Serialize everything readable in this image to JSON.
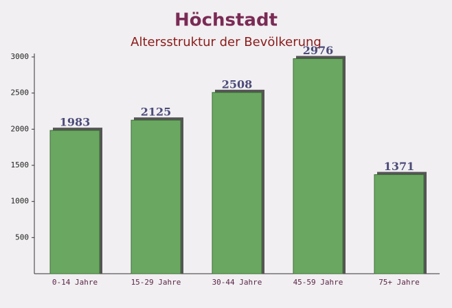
{
  "chart_data": {
    "type": "bar",
    "title": "Höchstadt",
    "subtitle": "Altersstruktur der Bevölkerung",
    "categories": [
      "0-14 Jahre",
      "15-29 Jahre",
      "30-44 Jahre",
      "45-59 Jahre",
      "75+ Jahre"
    ],
    "values": [
      1983,
      2125,
      2508,
      2976,
      1371
    ],
    "color": "#6aa862",
    "ylim": [
      0,
      3000
    ],
    "yticks": [
      500,
      1000,
      1500,
      2000,
      2500,
      3000
    ],
    "grid": false
  }
}
